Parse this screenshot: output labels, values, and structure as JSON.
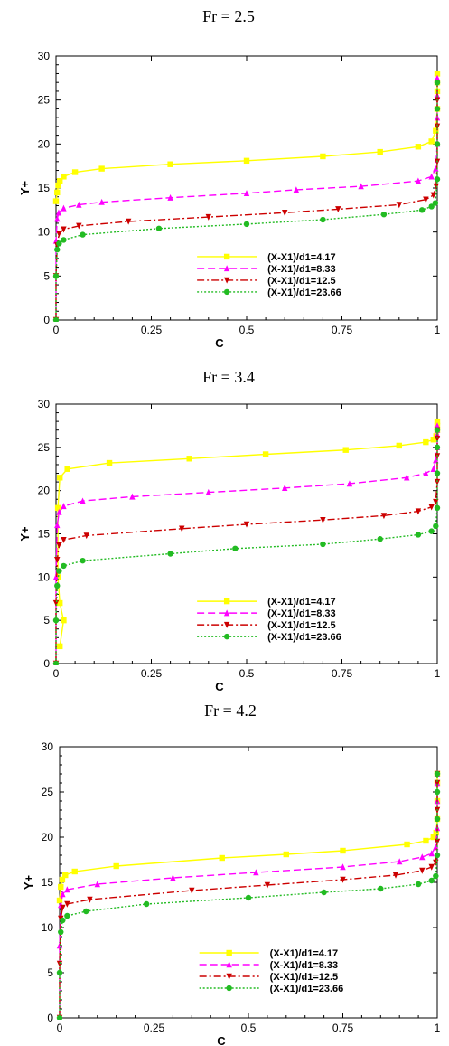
{
  "chart_data": [
    {
      "type": "line",
      "title": "Fr = 2.5",
      "xlabel": "C",
      "ylabel": "Y+",
      "xlim": [
        0,
        1
      ],
      "ylim": [
        0,
        30
      ],
      "xticks": [
        "0",
        "0.25",
        "0.5",
        "0.75",
        "1"
      ],
      "yticks": [
        "0",
        "5",
        "10",
        "15",
        "20",
        "25",
        "30"
      ],
      "legend_position": "lower-right",
      "series": [
        {
          "name": "(X-X1)/d1=4.17",
          "color": "#ffff00",
          "dash": "solid",
          "marker": "square",
          "x": [
            0,
            0.003,
            0.006,
            0.01,
            0.02,
            0.05,
            0.12,
            0.3,
            0.5,
            0.7,
            0.85,
            0.95,
            0.985,
            0.996,
            1,
            1,
            1,
            1
          ],
          "y": [
            13.5,
            14.5,
            15.3,
            15.8,
            16.3,
            16.8,
            17.2,
            17.7,
            18.1,
            18.6,
            19.1,
            19.7,
            20.3,
            21.5,
            24,
            26,
            27,
            28
          ]
        },
        {
          "name": "(X-X1)/d1=8.33",
          "color": "#ff00ff",
          "dash": "dash",
          "marker": "triangle",
          "x": [
            0,
            0,
            0.003,
            0.007,
            0.02,
            0.06,
            0.12,
            0.3,
            0.5,
            0.63,
            0.8,
            0.95,
            0.985,
            0.996,
            1,
            1,
            1,
            1
          ],
          "y": [
            0,
            9,
            11.5,
            12.2,
            12.7,
            13.1,
            13.4,
            13.9,
            14.4,
            14.8,
            15.2,
            15.8,
            16.3,
            17.2,
            20,
            23,
            25.5,
            27.5
          ]
        },
        {
          "name": "(X-X1)/d1=12.5",
          "color": "#cc0000",
          "dash": "dashdot",
          "marker": "triangle-down",
          "x": [
            0,
            0,
            0.003,
            0.008,
            0.02,
            0.06,
            0.19,
            0.4,
            0.6,
            0.74,
            0.9,
            0.97,
            0.99,
            0.997,
            1,
            1,
            1,
            1
          ],
          "y": [
            0,
            5,
            8.5,
            9.8,
            10.3,
            10.7,
            11.2,
            11.7,
            12.2,
            12.6,
            13.1,
            13.7,
            14.2,
            15.2,
            18,
            22,
            25,
            27
          ]
        },
        {
          "name": "(X-X1)/d1=23.66",
          "color": "#22bb22",
          "dash": "dot",
          "marker": "circle",
          "x": [
            0,
            0,
            0.003,
            0.008,
            0.02,
            0.07,
            0.27,
            0.5,
            0.7,
            0.86,
            0.96,
            0.985,
            0.995,
            1,
            1,
            1,
            1
          ],
          "y": [
            0,
            5,
            8,
            8.7,
            9.1,
            9.7,
            10.4,
            10.9,
            11.4,
            12,
            12.5,
            12.9,
            13.3,
            16,
            20,
            24,
            27
          ]
        }
      ]
    },
    {
      "type": "line",
      "title": "Fr = 3.4",
      "xlabel": "C",
      "ylabel": "Y+",
      "xlim": [
        0,
        1
      ],
      "ylim": [
        0,
        30
      ],
      "xticks": [
        "0",
        "0.25",
        "0.5",
        "0.75",
        "1"
      ],
      "yticks": [
        "0",
        "5",
        "10",
        "15",
        "20",
        "25",
        "30"
      ],
      "legend_position": "lower-right",
      "series": [
        {
          "name": "(X-X1)/d1=4.17",
          "color": "#ffff00",
          "dash": "solid",
          "marker": "square",
          "x": [
            0.01,
            0.02,
            0.01,
            0.005,
            0.005,
            0.01,
            0.03,
            0.14,
            0.35,
            0.55,
            0.76,
            0.9,
            0.97,
            0.99,
            0.997,
            1,
            1,
            1
          ],
          "y": [
            2,
            5,
            7,
            10,
            18,
            21.5,
            22.5,
            23.2,
            23.7,
            24.2,
            24.7,
            25.2,
            25.6,
            25.9,
            26.3,
            27,
            27.5,
            28
          ]
        },
        {
          "name": "(X-X1)/d1=8.33",
          "color": "#ff00ff",
          "dash": "dash",
          "marker": "triangle",
          "x": [
            0,
            0,
            0.003,
            0.008,
            0.02,
            0.07,
            0.2,
            0.4,
            0.6,
            0.77,
            0.92,
            0.97,
            0.99,
            0.996,
            1,
            1,
            1,
            1
          ],
          "y": [
            0,
            10,
            16,
            17.5,
            18.2,
            18.8,
            19.3,
            19.8,
            20.3,
            20.8,
            21.5,
            22,
            22.5,
            23.5,
            25,
            26.5,
            27,
            27.5
          ]
        },
        {
          "name": "(X-X1)/d1=12.5",
          "color": "#cc0000",
          "dash": "dashdot",
          "marker": "triangle-down",
          "x": [
            0,
            0,
            0.003,
            0.008,
            0.02,
            0.08,
            0.33,
            0.5,
            0.7,
            0.86,
            0.95,
            0.985,
            0.996,
            1,
            1,
            1,
            1
          ],
          "y": [
            0,
            7,
            12,
            13.7,
            14.3,
            14.8,
            15.6,
            16.1,
            16.6,
            17.1,
            17.6,
            18.1,
            18.7,
            21,
            24,
            26,
            27
          ]
        },
        {
          "name": "(X-X1)/d1=23.66",
          "color": "#22bb22",
          "dash": "dot",
          "marker": "circle",
          "x": [
            0,
            0,
            0.003,
            0.008,
            0.02,
            0.07,
            0.3,
            0.47,
            0.7,
            0.85,
            0.95,
            0.985,
            0.996,
            1,
            1,
            1,
            1
          ],
          "y": [
            0,
            5,
            9,
            10.7,
            11.3,
            11.9,
            12.7,
            13.3,
            13.8,
            14.4,
            14.9,
            15.3,
            15.9,
            18,
            22,
            25,
            27
          ]
        }
      ]
    },
    {
      "type": "line",
      "title": "Fr = 4.2",
      "xlabel": "C",
      "ylabel": "Y+",
      "xlim": [
        0,
        1
      ],
      "ylim": [
        0,
        30
      ],
      "xticks": [
        "0",
        "0.25",
        "0.5",
        "0.75",
        "1"
      ],
      "yticks": [
        "0",
        "5",
        "10",
        "15",
        "20",
        "25",
        "30"
      ],
      "legend_position": "lower-right",
      "series": [
        {
          "name": "(X-X1)/d1=4.17",
          "color": "#ffff00",
          "dash": "solid",
          "marker": "square",
          "x": [
            0,
            0.003,
            0.007,
            0.015,
            0.04,
            0.15,
            0.43,
            0.6,
            0.75,
            0.92,
            0.97,
            0.99,
            0.997,
            1,
            1,
            1,
            1
          ],
          "y": [
            13,
            14.5,
            15.3,
            15.8,
            16.2,
            16.8,
            17.7,
            18.1,
            18.5,
            19.2,
            19.6,
            20,
            20.5,
            22,
            24,
            26,
            27
          ]
        },
        {
          "name": "(X-X1)/d1=8.33",
          "color": "#ff00ff",
          "dash": "dash",
          "marker": "triangle",
          "x": [
            0,
            0,
            0.003,
            0.008,
            0.02,
            0.1,
            0.3,
            0.52,
            0.75,
            0.9,
            0.96,
            0.985,
            0.996,
            1,
            1,
            1,
            1
          ],
          "y": [
            0,
            8,
            12.5,
            13.7,
            14.2,
            14.8,
            15.5,
            16.1,
            16.7,
            17.3,
            17.8,
            18.2,
            18.9,
            21,
            24,
            26,
            27
          ]
        },
        {
          "name": "(X-X1)/d1=12.5",
          "color": "#cc0000",
          "dash": "dashdot",
          "marker": "triangle-down",
          "x": [
            0,
            0,
            0.003,
            0.008,
            0.02,
            0.08,
            0.35,
            0.55,
            0.75,
            0.89,
            0.96,
            0.985,
            0.996,
            1,
            1,
            1,
            1
          ],
          "y": [
            0,
            6,
            11,
            12.2,
            12.6,
            13.1,
            14.1,
            14.7,
            15.3,
            15.8,
            16.3,
            16.7,
            17.2,
            19.5,
            23,
            26,
            27
          ]
        },
        {
          "name": "(X-X1)/d1=23.66",
          "color": "#22bb22",
          "dash": "dot",
          "marker": "circle",
          "x": [
            0,
            0,
            0.003,
            0.008,
            0.02,
            0.07,
            0.23,
            0.5,
            0.7,
            0.85,
            0.95,
            0.985,
            0.996,
            1,
            1,
            1,
            1
          ],
          "y": [
            0,
            5,
            9.5,
            10.8,
            11.3,
            11.8,
            12.6,
            13.3,
            13.9,
            14.3,
            14.8,
            15.2,
            15.7,
            18,
            22,
            25,
            27
          ]
        }
      ]
    }
  ]
}
